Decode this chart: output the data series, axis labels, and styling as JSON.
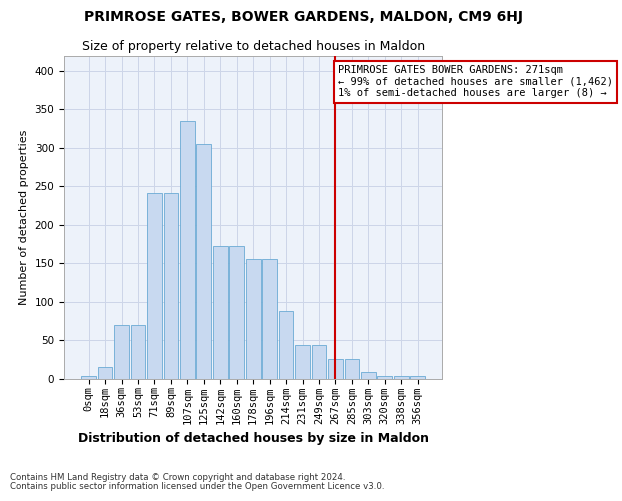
{
  "title": "PRIMROSE GATES, BOWER GARDENS, MALDON, CM9 6HJ",
  "subtitle": "Size of property relative to detached houses in Maldon",
  "xlabel": "Distribution of detached houses by size in Maldon",
  "ylabel": "Number of detached properties",
  "footnote1": "Contains HM Land Registry data © Crown copyright and database right 2024.",
  "footnote2": "Contains public sector information licensed under the Open Government Licence v3.0.",
  "bar_labels": [
    "0sqm",
    "18sqm",
    "36sqm",
    "53sqm",
    "71sqm",
    "89sqm",
    "107sqm",
    "125sqm",
    "142sqm",
    "160sqm",
    "178sqm",
    "196sqm",
    "214sqm",
    "231sqm",
    "249sqm",
    "267sqm",
    "285sqm",
    "303sqm",
    "320sqm",
    "338sqm",
    "356sqm"
  ],
  "bar_heights": [
    3,
    15,
    70,
    70,
    241,
    241,
    335,
    305,
    172,
    172,
    155,
    155,
    88,
    44,
    44,
    26,
    26,
    8,
    3,
    3,
    3
  ],
  "bar_color": "#c8d9f0",
  "bar_edge_color": "#6aaad4",
  "grid_color": "#cdd5e8",
  "background_color": "#edf2fa",
  "vline_x": 15,
  "vline_color": "#cc0000",
  "annotation_text": "PRIMROSE GATES BOWER GARDENS: 271sqm\n← 99% of detached houses are smaller (1,462)\n1% of semi-detached houses are larger (8) →",
  "annotation_box_color": "#ffffff",
  "annotation_box_edge": "#cc0000",
  "ylim": [
    0,
    420
  ],
  "yticks": [
    0,
    50,
    100,
    150,
    200,
    250,
    300,
    350,
    400
  ],
  "title_fontsize": 10,
  "subtitle_fontsize": 9,
  "ylabel_fontsize": 8,
  "xlabel_fontsize": 9,
  "tick_fontsize": 7.5,
  "annot_fontsize": 7.5
}
